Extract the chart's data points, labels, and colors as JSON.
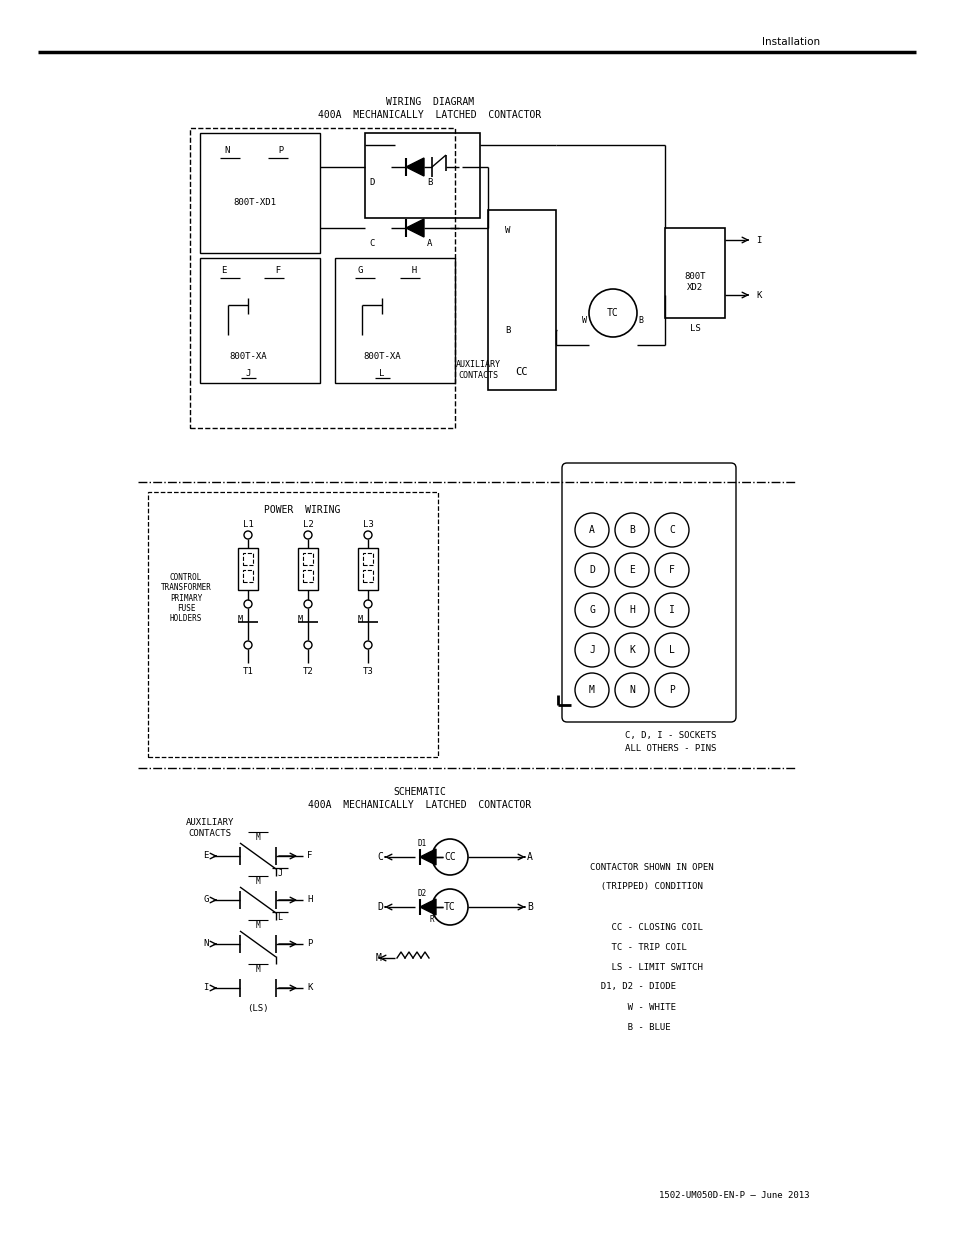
{
  "page_title": "Installation",
  "footer_text": "1502-UM050D-EN-P – June 2013",
  "wiring_title_line1": "WIRING  DIAGRAM",
  "wiring_title_line2": "400A  MECHANICALLY  LATCHED  CONTACTOR",
  "power_title": "POWER  WIRING",
  "schematic_title_line1": "SCHEMATIC",
  "schematic_title_line2": "400A  MECHANICALLY  LATCHED  CONTACTOR",
  "legend_lines": [
    "CONTACTOR SHOWN IN OPEN",
    "  (TRIPPED) CONDITION",
    "",
    "    CC - CLOSING COIL",
    "    TC - TRIP COIL",
    "    LS - LIMIT SWITCH",
    "  D1, D2 - DIODE",
    "       W - WHITE",
    "       B - BLUE"
  ],
  "grid_labels": [
    [
      "A",
      "B",
      "C"
    ],
    [
      "D",
      "E",
      "F"
    ],
    [
      "G",
      "H",
      "I"
    ],
    [
      "J",
      "K",
      "L"
    ],
    [
      "M",
      "N",
      "P"
    ]
  ],
  "socket_note_line1": "C, D, I - SOCKETS",
  "socket_note_line2": "ALL OTHERS - PINS"
}
